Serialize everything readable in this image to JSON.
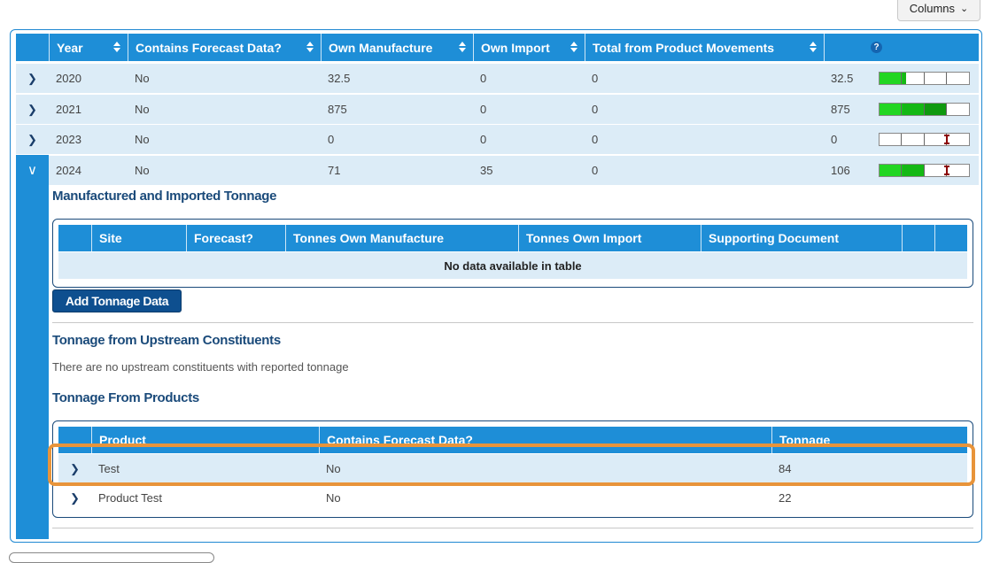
{
  "toolbar": {
    "columns_label": "Columns"
  },
  "main_table": {
    "headers": [
      "Year",
      "Contains Forecast Data?",
      "Own Manufacture",
      "Own Import",
      "Total from Product Movements"
    ],
    "help_icon": "?",
    "rows": [
      {
        "year": "2020",
        "forecast": "No",
        "own_manufacture": "32.5",
        "own_import": "0",
        "product_movements": "0",
        "total": "32.5",
        "level": 0.3,
        "has_marker": false
      },
      {
        "year": "2021",
        "forecast": "No",
        "own_manufacture": "875",
        "own_import": "0",
        "product_movements": "0",
        "total": "875",
        "level": 0.75,
        "has_marker": false
      },
      {
        "year": "2023",
        "forecast": "No",
        "own_manufacture": "0",
        "own_import": "0",
        "product_movements": "0",
        "total": "0",
        "level": 0.0,
        "has_marker": true
      },
      {
        "year": "2024",
        "forecast": "No",
        "own_manufacture": "71",
        "own_import": "35",
        "product_movements": "0",
        "total": "106",
        "level": 0.5,
        "has_marker": true
      }
    ]
  },
  "detail": {
    "manufactured": {
      "title": "Manufactured and Imported Tonnage",
      "headers": [
        "Site",
        "Forecast?",
        "Tonnes Own Manufacture",
        "Tonnes Own Import",
        "Supporting Document"
      ],
      "empty_text": "No data available in table",
      "add_button": "Add Tonnage Data"
    },
    "upstream": {
      "title": "Tonnage from Upstream Constituents",
      "note": "There are no upstream constituents with reported tonnage"
    },
    "products": {
      "title": "Tonnage From Products",
      "headers": [
        "Product",
        "Contains Forecast Data?",
        "Tonnage"
      ],
      "rows": [
        {
          "product": "Test",
          "forecast": "No",
          "tonnage": "84"
        },
        {
          "product": "Product Test",
          "forecast": "No",
          "tonnage": "22"
        }
      ]
    }
  },
  "colors": {
    "header_blue": "#1e8ed7",
    "row_bg": "#dcecf7",
    "dark_blue": "#1a4a7a",
    "highlight": "#e8943a"
  }
}
